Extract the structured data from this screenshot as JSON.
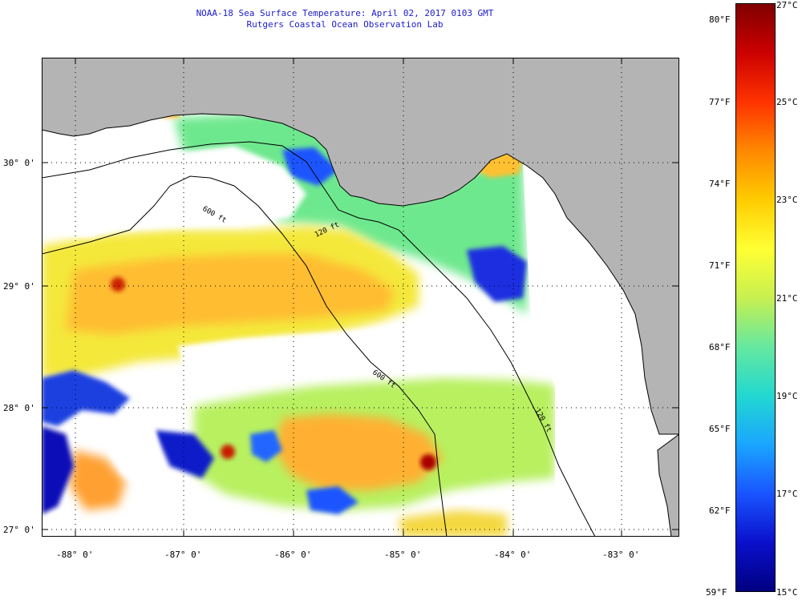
{
  "title": {
    "line1": "NOAA-18 Sea Surface Temperature:  April 02, 2017 0103 GMT",
    "line2": "Rutgers Coastal Ocean Observation Lab"
  },
  "map": {
    "lat_labels": [
      "30° 0'",
      "29° 0'",
      "28° 0'",
      "27° 0'"
    ],
    "lon_labels": [
      "-88° 0'",
      "-87° 0'",
      "-86° 0'",
      "-85° 0'",
      "-84° 0'",
      "-83° 0'"
    ],
    "contour_labels": [
      "600 ft",
      "120 ft",
      "600 ft",
      "120 ft"
    ],
    "land_color": "#b4b4b4",
    "cloud_color": "#ffffff"
  },
  "colorbar": {
    "fahrenheit": [
      "80°F",
      "77°F",
      "74°F",
      "71°F",
      "68°F",
      "65°F",
      "62°F",
      "59°F"
    ],
    "celsius": [
      "27°C",
      "25°C",
      "23°C",
      "21°C",
      "19°C",
      "17°C",
      "15°C"
    ],
    "colors_top_to_bottom": [
      "#800000",
      "#cc0000",
      "#ff3300",
      "#ff8800",
      "#ffcc00",
      "#ffff33",
      "#c8f050",
      "#66e8a0",
      "#22d8d0",
      "#1aa6ff",
      "#1a55ff",
      "#0a10cc",
      "#000080"
    ]
  }
}
